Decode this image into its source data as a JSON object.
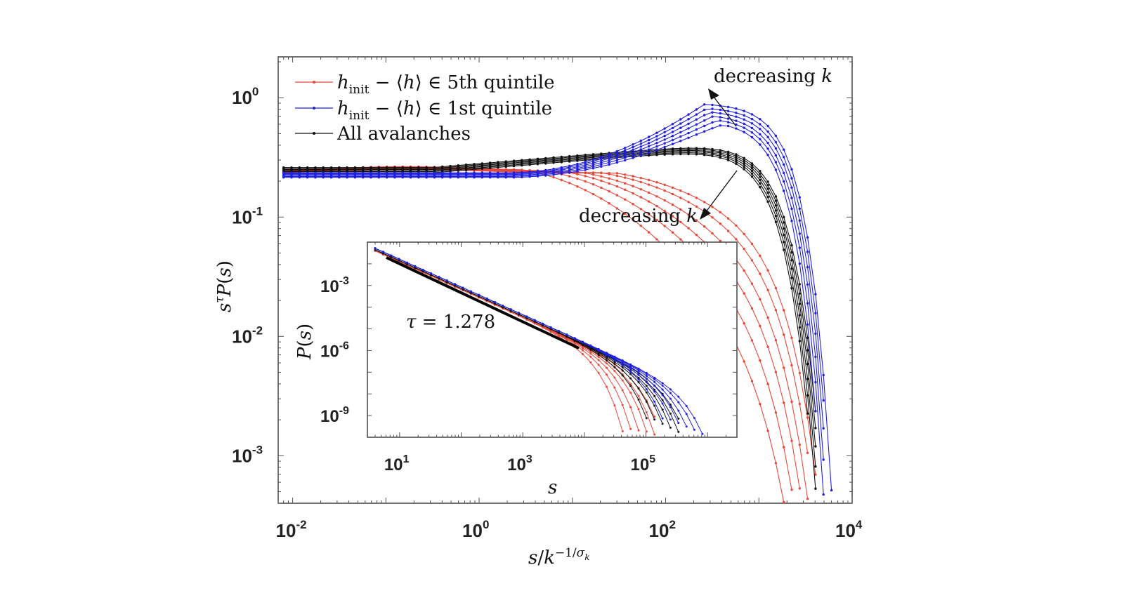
{
  "chart_data": [
    {
      "type": "line",
      "xscale": "log",
      "yscale": "log",
      "xlim": [
        0.007,
        10000
      ],
      "ylim": [
        0.0004,
        2.2
      ],
      "x_ticks": [
        0.01,
        1,
        100,
        10000
      ],
      "x_tick_labels": [
        [
          "10",
          "-2"
        ],
        [
          "10",
          "0"
        ],
        [
          "10",
          "2"
        ],
        [
          "10",
          "4"
        ]
      ],
      "y_ticks": [
        0.001,
        0.01,
        0.1,
        1
      ],
      "y_tick_labels": [
        [
          "10",
          "-3"
        ],
        [
          "10",
          "-2"
        ],
        [
          "10",
          "-1"
        ],
        [
          "10",
          "0"
        ]
      ],
      "xlabel": "s/k^{-1/σ_k}",
      "ylabel": "s^τ P(s)",
      "grid": false,
      "legend_position": "top-left",
      "legend": [
        {
          "text": "h_init − ⟨h⟩ ∈ 5th quintile",
          "color": "#e8483a"
        },
        {
          "text": "h_init − ⟨h⟩ ∈ 1st quintile",
          "color": "#1f1fe0"
        },
        {
          "text": "All avalanches",
          "color": "#111111"
        }
      ],
      "annotations": [
        {
          "text": "decreasing k",
          "target": "blue curves"
        },
        {
          "text": "decreasing k",
          "target": "red curves"
        }
      ],
      "series": [
        {
          "group": "5th quintile",
          "color": "#e8483a",
          "x": [
            0.008,
            0.03,
            0.1,
            1,
            5,
            20,
            60,
            150,
            300,
            700,
            1500,
            2500
          ],
          "y": [
            0.24,
            0.255,
            0.26,
            0.255,
            0.23,
            0.2,
            0.17,
            0.12,
            0.08,
            0.04,
            0.012,
            0.002
          ]
        },
        {
          "group": "5th quintile",
          "color": "#e8483a",
          "x": [
            0.008,
            0.03,
            0.1,
            1,
            5,
            20,
            60,
            150,
            300,
            700,
            1500,
            2500
          ],
          "y": [
            0.24,
            0.255,
            0.26,
            0.255,
            0.235,
            0.21,
            0.18,
            0.14,
            0.1,
            0.05,
            0.012,
            0.0006
          ]
        }
      ]
    },
    {
      "type": "line",
      "inset": true,
      "xscale": "log",
      "yscale": "log",
      "xlim": [
        3,
        3000000
      ],
      "ylim": [
        1e-10,
        0.1
      ],
      "x_ticks": [
        10,
        1000,
        100000
      ],
      "x_tick_labels": [
        [
          "10",
          "1"
        ],
        [
          "10",
          "3"
        ],
        [
          "10",
          "5"
        ]
      ],
      "y_ticks": [
        1e-09,
        1e-06,
        0.001
      ],
      "y_tick_labels": [
        [
          "10",
          "-9"
        ],
        [
          "10",
          "-6"
        ],
        [
          "10",
          "-3"
        ]
      ],
      "xlabel": "s",
      "ylabel": "P(s)",
      "fit_line": {
        "label": "τ = 1.278",
        "tau": 1.278,
        "x_range": [
          10,
          10000
        ]
      }
    }
  ]
}
